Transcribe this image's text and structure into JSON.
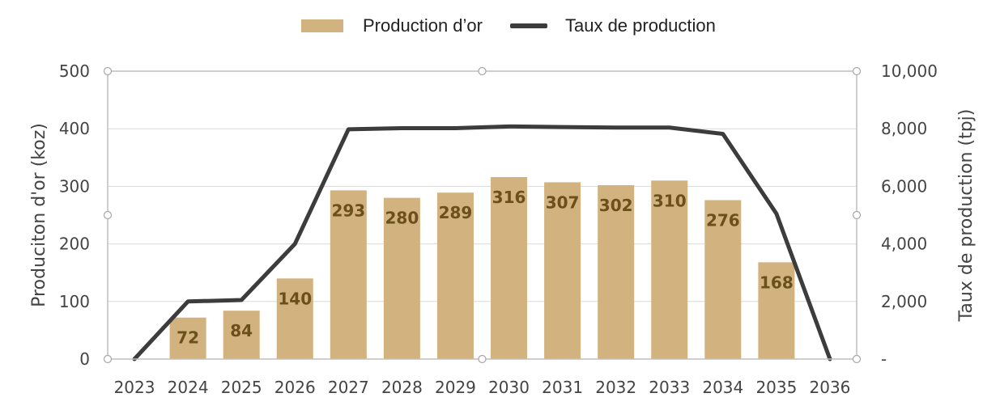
{
  "legend": {
    "bar_label": "Production d’or",
    "line_label": "Taux de production"
  },
  "colors": {
    "bar": "#d2b27f",
    "line": "#3c3c3c",
    "bar_label": "#6b4f1d",
    "grid": "#d9d9d9",
    "axis": "#bfbfbf"
  },
  "chart_data": {
    "type": "bar",
    "title": "",
    "categories": [
      "2023",
      "2024",
      "2025",
      "2026",
      "2027",
      "2028",
      "2029",
      "2030",
      "2031",
      "2032",
      "2033",
      "2034",
      "2035",
      "2036"
    ],
    "ylabel": "Produciton d'or (koz)",
    "y2label": "Taux de production (tpj)",
    "ylim": [
      0,
      500
    ],
    "y2lim": [
      0,
      10000
    ],
    "yticks": [
      "0",
      "100",
      "200",
      "300",
      "400",
      "500"
    ],
    "y2ticks": [
      "-",
      "2,000",
      "4,000",
      "6,000",
      "8,000",
      "10,000"
    ],
    "grid": true,
    "legend_position": "top",
    "series": [
      {
        "name": "Production d’or",
        "type": "bar",
        "axis": "left",
        "values": [
          null,
          72,
          84,
          140,
          293,
          280,
          289,
          316,
          307,
          302,
          310,
          276,
          168,
          null
        ],
        "labels": [
          "",
          "72",
          "84",
          "140",
          "293",
          "280",
          "289",
          "316",
          "307",
          "302",
          "310",
          "276",
          "168",
          ""
        ]
      },
      {
        "name": "Taux de production",
        "type": "line",
        "axis": "right",
        "values": [
          0,
          2000,
          2050,
          4000,
          7980,
          8020,
          8020,
          8080,
          8060,
          8040,
          8040,
          7820,
          5050,
          0
        ]
      }
    ]
  }
}
